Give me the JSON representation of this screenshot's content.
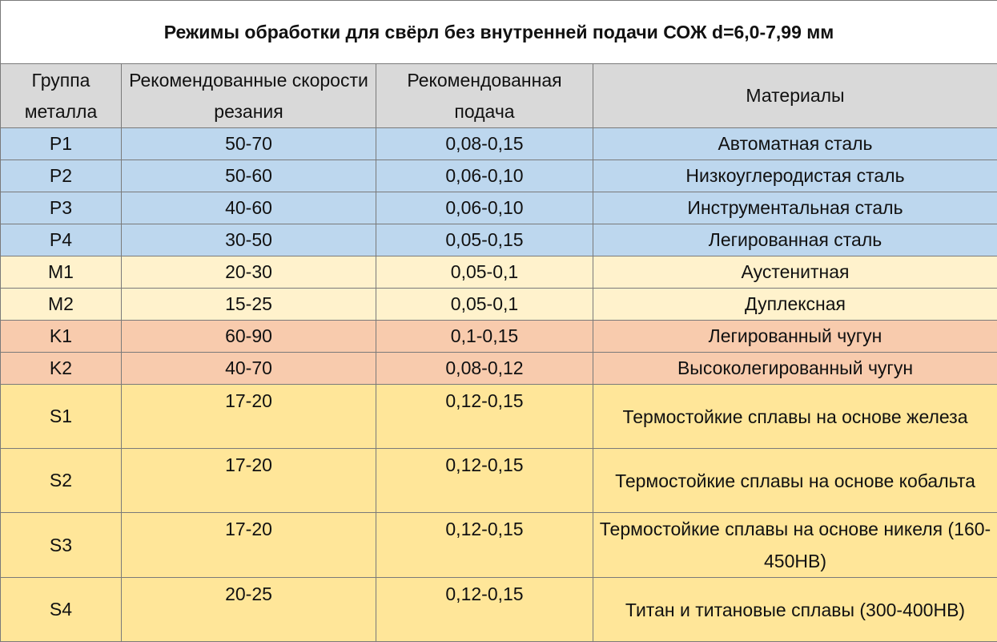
{
  "title": "Режимы обработки для свёрл без внутренней подачи СОЖ d=6,0-7,99 мм",
  "headers": {
    "group": "Группа металла",
    "speed": "Рекомендованные скорости резания",
    "feed": "Рекомендованная подача",
    "materials": "Материалы"
  },
  "colors": {
    "P": "#bdd7ee",
    "M": "#fff2cc",
    "K": "#f8cbad",
    "S": "#ffe699",
    "header": "#d9d9d9"
  },
  "rows": [
    {
      "group": "P1",
      "speed": "50-70",
      "feed": "0,08-0,15",
      "material": "Автоматная сталь",
      "color_key": "P"
    },
    {
      "group": "P2",
      "speed": "50-60",
      "feed": "0,06-0,10",
      "material": "Низкоуглеродистая сталь",
      "color_key": "P"
    },
    {
      "group": "P3",
      "speed": "40-60",
      "feed": "0,06-0,10",
      "material": "Инструментальная сталь",
      "color_key": "P"
    },
    {
      "group": "P4",
      "speed": "30-50",
      "feed": "0,05-0,15",
      "material": "Легированная сталь",
      "color_key": "P"
    },
    {
      "group": "M1",
      "speed": "20-30",
      "feed": "0,05-0,1",
      "material": "Аустенитная",
      "color_key": "M"
    },
    {
      "group": "M2",
      "speed": "15-25",
      "feed": "0,05-0,1",
      "material": "Дуплексная",
      "color_key": "M"
    },
    {
      "group": "K1",
      "speed": "60-90",
      "feed": "0,1-0,15",
      "material": "Легированный чугун",
      "color_key": "K"
    },
    {
      "group": "K2",
      "speed": "40-70",
      "feed": "0,08-0,12",
      "material": "Высоколегированный чугун",
      "color_key": "K"
    },
    {
      "group": "S1",
      "speed": "17-20",
      "feed": "0,12-0,15",
      "material": "Термостойкие сплавы на основе железа",
      "color_key": "S"
    },
    {
      "group": "S2",
      "speed": "17-20",
      "feed": "0,12-0,15",
      "material": "Термостойкие сплавы на основе кобальта",
      "color_key": "S"
    },
    {
      "group": "S3",
      "speed": "17-20",
      "feed": "0,12-0,15",
      "material": "Термостойкие сплавы на основе никеля (160-450HB)",
      "color_key": "S"
    },
    {
      "group": "S4",
      "speed": "20-25",
      "feed": "0,12-0,15",
      "material": "Титан и титановые сплавы (300-400HB)",
      "color_key": "S"
    }
  ]
}
